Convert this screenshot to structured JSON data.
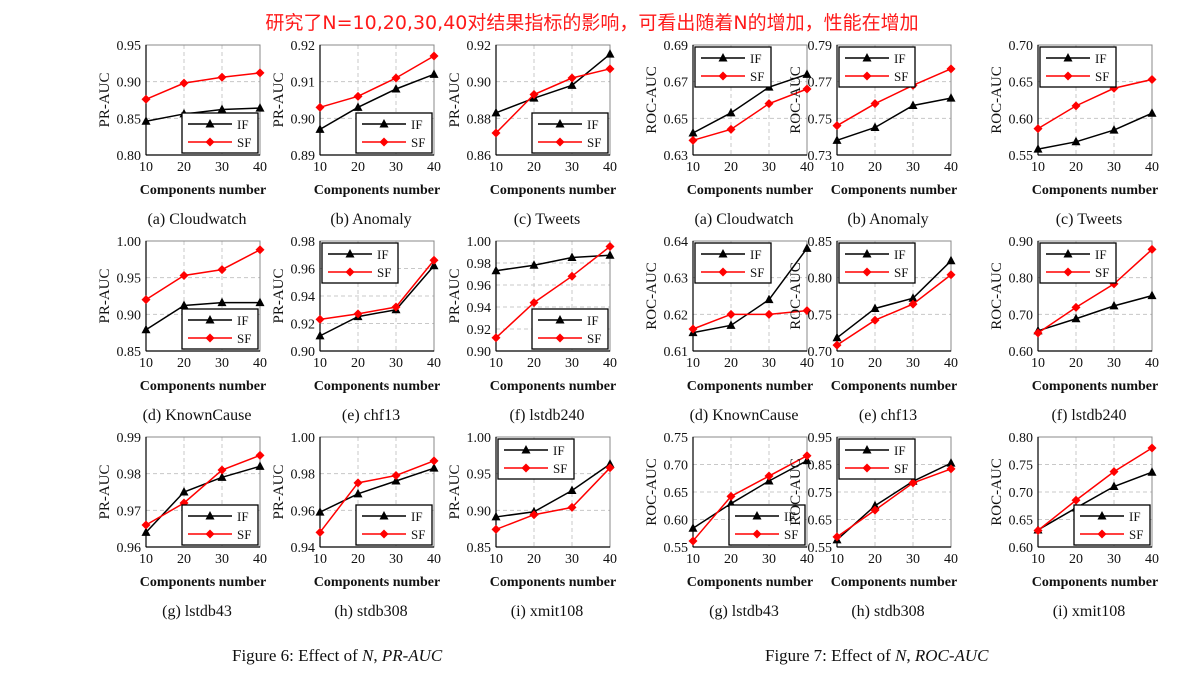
{
  "annotation": "研究了N=10,20,30,40对结果指标的影响，可看出随着N的增加，性能在增加",
  "colors": {
    "IF": "#000000",
    "SF": "#ff0000",
    "annotation": "#ff1a1a"
  },
  "figures": [
    {
      "prefix": "Figure 6: Effect of ",
      "var": "N",
      "sep": ", ",
      "metric": "PR-AUC"
    },
    {
      "prefix": "Figure 7: Effect of ",
      "var": "N",
      "sep": ", ",
      "metric": "ROC-AUC"
    }
  ],
  "chart_data": [
    {
      "figure": 0,
      "type": "line",
      "caption": "(a) Cloudwatch",
      "xlabel": "Components number",
      "ylabel": "PR-AUC",
      "x": [
        10,
        20,
        30,
        40
      ],
      "ylim": [
        0.8,
        0.95
      ],
      "yticks": [
        "0.80",
        "0.85",
        "0.90",
        "0.95"
      ],
      "grid": true,
      "legend": "bottom-right",
      "series": [
        {
          "name": "IF",
          "values": [
            0.846,
            0.856,
            0.862,
            0.864
          ]
        },
        {
          "name": "SF",
          "values": [
            0.876,
            0.898,
            0.906,
            0.912
          ]
        }
      ]
    },
    {
      "figure": 0,
      "type": "line",
      "caption": "(b) Anomaly",
      "xlabel": "Components number",
      "ylabel": "PR-AUC",
      "x": [
        10,
        20,
        30,
        40
      ],
      "ylim": [
        0.89,
        0.92
      ],
      "yticks": [
        "0.89",
        "0.90",
        "0.91",
        "0.92"
      ],
      "grid": true,
      "legend": "bottom-right",
      "series": [
        {
          "name": "IF",
          "values": [
            0.897,
            0.903,
            0.908,
            0.912
          ]
        },
        {
          "name": "SF",
          "values": [
            0.903,
            0.906,
            0.911,
            0.917
          ]
        }
      ]
    },
    {
      "figure": 0,
      "type": "line",
      "caption": "(c) Tweets",
      "xlabel": "Components number",
      "ylabel": "PR-AUC",
      "x": [
        10,
        20,
        30,
        40
      ],
      "ylim": [
        0.86,
        0.92
      ],
      "yticks": [
        "0.86",
        "0.88",
        "0.90",
        "0.92"
      ],
      "grid": true,
      "legend": "bottom-right",
      "series": [
        {
          "name": "IF",
          "values": [
            0.883,
            0.891,
            0.898,
            0.915
          ]
        },
        {
          "name": "SF",
          "values": [
            0.872,
            0.893,
            0.902,
            0.907
          ]
        }
      ]
    },
    {
      "figure": 0,
      "type": "line",
      "caption": "(d) KnownCause",
      "xlabel": "Components number",
      "ylabel": "PR-AUC",
      "x": [
        10,
        20,
        30,
        40
      ],
      "ylim": [
        0.85,
        1.0
      ],
      "yticks": [
        "0.85",
        "0.90",
        "0.95",
        "1.00"
      ],
      "grid": true,
      "legend": "bottom-right",
      "series": [
        {
          "name": "IF",
          "values": [
            0.879,
            0.912,
            0.916,
            0.916
          ]
        },
        {
          "name": "SF",
          "values": [
            0.92,
            0.953,
            0.961,
            0.988
          ]
        }
      ]
    },
    {
      "figure": 0,
      "type": "line",
      "caption": "(e) chf13",
      "xlabel": "Components number",
      "ylabel": "PR-AUC",
      "x": [
        10,
        20,
        30,
        40
      ],
      "ylim": [
        0.9,
        0.98
      ],
      "yticks": [
        "0.90",
        "0.92",
        "0.94",
        "0.96",
        "0.98"
      ],
      "grid": true,
      "legend": "top-left",
      "series": [
        {
          "name": "IF",
          "values": [
            0.911,
            0.925,
            0.93,
            0.962
          ]
        },
        {
          "name": "SF",
          "values": [
            0.923,
            0.927,
            0.932,
            0.966
          ]
        }
      ]
    },
    {
      "figure": 0,
      "type": "line",
      "caption": "(f) lstdb240",
      "xlabel": "Components number",
      "ylabel": "PR-AUC",
      "x": [
        10,
        20,
        30,
        40
      ],
      "ylim": [
        0.9,
        1.0
      ],
      "yticks": [
        "0.90",
        "0.92",
        "0.94",
        "0.96",
        "0.98",
        "1.00"
      ],
      "grid": true,
      "legend": "bottom-right",
      "series": [
        {
          "name": "IF",
          "values": [
            0.973,
            0.978,
            0.985,
            0.987
          ]
        },
        {
          "name": "SF",
          "values": [
            0.912,
            0.944,
            0.968,
            0.995
          ]
        }
      ]
    },
    {
      "figure": 0,
      "type": "line",
      "caption": "(g) lstdb43",
      "xlabel": "Components number",
      "ylabel": "PR-AUC",
      "x": [
        10,
        20,
        30,
        40
      ],
      "ylim": [
        0.96,
        0.99
      ],
      "yticks": [
        "0.96",
        "0.97",
        "0.98",
        "0.99"
      ],
      "grid": true,
      "legend": "bottom-right",
      "series": [
        {
          "name": "IF",
          "values": [
            0.964,
            0.975,
            0.979,
            0.982
          ]
        },
        {
          "name": "SF",
          "values": [
            0.966,
            0.972,
            0.981,
            0.985
          ]
        }
      ]
    },
    {
      "figure": 0,
      "type": "line",
      "caption": "(h) stdb308",
      "xlabel": "Components number",
      "ylabel": "PR-AUC",
      "x": [
        10,
        20,
        30,
        40
      ],
      "ylim": [
        0.94,
        1.0
      ],
      "yticks": [
        "0.94",
        "0.96",
        "0.98",
        "1.00"
      ],
      "grid": true,
      "legend": "bottom-right",
      "series": [
        {
          "name": "IF",
          "values": [
            0.959,
            0.969,
            0.976,
            0.983
          ]
        },
        {
          "name": "SF",
          "values": [
            0.948,
            0.975,
            0.979,
            0.987
          ]
        }
      ]
    },
    {
      "figure": 0,
      "type": "line",
      "caption": "(i) xmit108",
      "xlabel": "Components number",
      "ylabel": "PR-AUC",
      "x": [
        10,
        20,
        30,
        40
      ],
      "ylim": [
        0.85,
        1.0
      ],
      "yticks": [
        "0.85",
        "0.90",
        "0.95",
        "1.00"
      ],
      "grid": true,
      "legend": "top-left",
      "series": [
        {
          "name": "IF",
          "values": [
            0.891,
            0.898,
            0.927,
            0.963
          ]
        },
        {
          "name": "SF",
          "values": [
            0.874,
            0.894,
            0.904,
            0.958
          ]
        }
      ]
    },
    {
      "figure": 1,
      "type": "line",
      "caption": "(a) Cloudwatch",
      "xlabel": "Components number",
      "ylabel": "ROC-AUC",
      "x": [
        10,
        20,
        30,
        40
      ],
      "ylim": [
        0.63,
        0.69
      ],
      "yticks": [
        "0.63",
        "0.65",
        "0.67",
        "0.69"
      ],
      "grid": true,
      "legend": "top-left",
      "series": [
        {
          "name": "IF",
          "values": [
            0.642,
            0.653,
            0.667,
            0.674
          ]
        },
        {
          "name": "SF",
          "values": [
            0.638,
            0.644,
            0.658,
            0.666
          ]
        }
      ]
    },
    {
      "figure": 1,
      "type": "line",
      "caption": "(b) Anomaly",
      "xlabel": "Components number",
      "ylabel": "ROC-AUC",
      "x": [
        10,
        20,
        30,
        40
      ],
      "ylim": [
        0.73,
        0.79
      ],
      "yticks": [
        "0.73",
        "0.75",
        "0.77",
        "0.79"
      ],
      "grid": true,
      "legend": "top-left",
      "series": [
        {
          "name": "IF",
          "values": [
            0.738,
            0.745,
            0.757,
            0.761
          ]
        },
        {
          "name": "SF",
          "values": [
            0.746,
            0.758,
            0.768,
            0.777
          ]
        }
      ]
    },
    {
      "figure": 1,
      "type": "line",
      "caption": "(c) Tweets",
      "xlabel": "Components number",
      "ylabel": "ROC-AUC",
      "x": [
        10,
        20,
        30,
        40
      ],
      "ylim": [
        0.55,
        0.7
      ],
      "yticks": [
        "0.55",
        "0.60",
        "0.65",
        "0.70"
      ],
      "grid": true,
      "legend": "top-left",
      "series": [
        {
          "name": "IF",
          "values": [
            0.558,
            0.568,
            0.584,
            0.607
          ]
        },
        {
          "name": "SF",
          "values": [
            0.586,
            0.617,
            0.641,
            0.653
          ]
        }
      ]
    },
    {
      "figure": 1,
      "type": "line",
      "caption": "(d) KnownCause",
      "xlabel": "Components number",
      "ylabel": "ROC-AUC",
      "x": [
        10,
        20,
        30,
        40
      ],
      "ylim": [
        0.61,
        0.64
      ],
      "yticks": [
        "0.61",
        "0.62",
        "0.63",
        "0.64"
      ],
      "grid": true,
      "legend": "top-left",
      "series": [
        {
          "name": "IF",
          "values": [
            0.615,
            0.617,
            0.624,
            0.638
          ]
        },
        {
          "name": "SF",
          "values": [
            0.616,
            0.62,
            0.62,
            0.621
          ]
        }
      ]
    },
    {
      "figure": 1,
      "type": "line",
      "caption": "(e) chf13",
      "xlabel": "Components number",
      "ylabel": "ROC-AUC",
      "x": [
        10,
        20,
        30,
        40
      ],
      "ylim": [
        0.7,
        0.85
      ],
      "yticks": [
        "0.70",
        "0.75",
        "0.80",
        "0.85"
      ],
      "grid": true,
      "legend": "top-left",
      "series": [
        {
          "name": "IF",
          "values": [
            0.718,
            0.758,
            0.772,
            0.823
          ]
        },
        {
          "name": "SF",
          "values": [
            0.708,
            0.742,
            0.764,
            0.804
          ]
        }
      ]
    },
    {
      "figure": 1,
      "type": "line",
      "caption": "(f) lstdb240",
      "xlabel": "Components number",
      "ylabel": "ROC-AUC",
      "x": [
        10,
        20,
        30,
        40
      ],
      "ylim": [
        0.6,
        0.9
      ],
      "yticks": [
        "0.60",
        "0.70",
        "0.80",
        "0.90"
      ],
      "grid": true,
      "legend": "top-left",
      "series": [
        {
          "name": "IF",
          "values": [
            0.655,
            0.688,
            0.723,
            0.751
          ]
        },
        {
          "name": "SF",
          "values": [
            0.649,
            0.719,
            0.783,
            0.877
          ]
        }
      ]
    },
    {
      "figure": 1,
      "type": "line",
      "caption": "(g) lstdb43",
      "xlabel": "Components number",
      "ylabel": "ROC-AUC",
      "x": [
        10,
        20,
        30,
        40
      ],
      "ylim": [
        0.55,
        0.75
      ],
      "yticks": [
        "0.55",
        "0.60",
        "0.65",
        "0.70",
        "0.75"
      ],
      "grid": true,
      "legend": "bottom-right",
      "series": [
        {
          "name": "IF",
          "values": [
            0.584,
            0.629,
            0.67,
            0.707
          ]
        },
        {
          "name": "SF",
          "values": [
            0.561,
            0.642,
            0.679,
            0.716
          ]
        }
      ]
    },
    {
      "figure": 1,
      "type": "line",
      "caption": "(h) stdb308",
      "xlabel": "Components number",
      "ylabel": "ROC-AUC",
      "x": [
        10,
        20,
        30,
        40
      ],
      "ylim": [
        0.55,
        0.95
      ],
      "yticks": [
        "0.55",
        "0.65",
        "0.75",
        "0.85",
        "0.95"
      ],
      "grid": true,
      "legend": "top-left",
      "series": [
        {
          "name": "IF",
          "values": [
            0.576,
            0.7,
            0.789,
            0.855
          ]
        },
        {
          "name": "SF",
          "values": [
            0.587,
            0.684,
            0.783,
            0.834
          ]
        }
      ]
    },
    {
      "figure": 1,
      "type": "line",
      "caption": "(i) xmit108",
      "xlabel": "Components number",
      "ylabel": "ROC-AUC",
      "x": [
        10,
        20,
        30,
        40
      ],
      "ylim": [
        0.6,
        0.8
      ],
      "yticks": [
        "0.60",
        "0.65",
        "0.70",
        "0.75",
        "0.80"
      ],
      "grid": true,
      "legend": "bottom-right",
      "series": [
        {
          "name": "IF",
          "values": [
            0.631,
            0.671,
            0.71,
            0.736
          ]
        },
        {
          "name": "SF",
          "values": [
            0.63,
            0.685,
            0.737,
            0.78
          ]
        }
      ]
    }
  ]
}
